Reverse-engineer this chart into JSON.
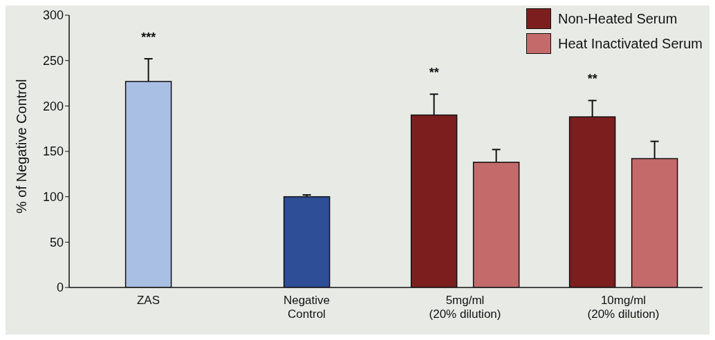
{
  "chart_data": {
    "type": "bar",
    "ylabel": "% of Negative Control",
    "categories": [
      "ZAS",
      "Negative\nControl",
      "5mg/ml\n(20% dilution)",
      "10mg/ml\n(20% dilution)"
    ],
    "series": [
      {
        "color": "#a9bfe3",
        "values": [
          227,
          null,
          null,
          null
        ],
        "errors": [
          25,
          null,
          null,
          null
        ]
      },
      {
        "color": "#2f4e98",
        "values": [
          null,
          100,
          null,
          null
        ],
        "errors": [
          null,
          2,
          null,
          null
        ]
      },
      {
        "name": "Non-Heated Serum",
        "color": "#7d1e1e",
        "values": [
          null,
          null,
          190,
          188
        ],
        "errors": [
          null,
          null,
          23,
          18
        ]
      },
      {
        "name": "Heat Inactivated Serum",
        "color": "#c46a6a",
        "values": [
          null,
          null,
          138,
          142
        ],
        "errors": [
          null,
          null,
          14,
          19
        ]
      }
    ],
    "ylim": [
      0,
      300
    ],
    "yticks": [
      0,
      50,
      100,
      150,
      200,
      250,
      300
    ],
    "legend": "top right",
    "annotations": [
      "***",
      "**",
      "**"
    ]
  }
}
